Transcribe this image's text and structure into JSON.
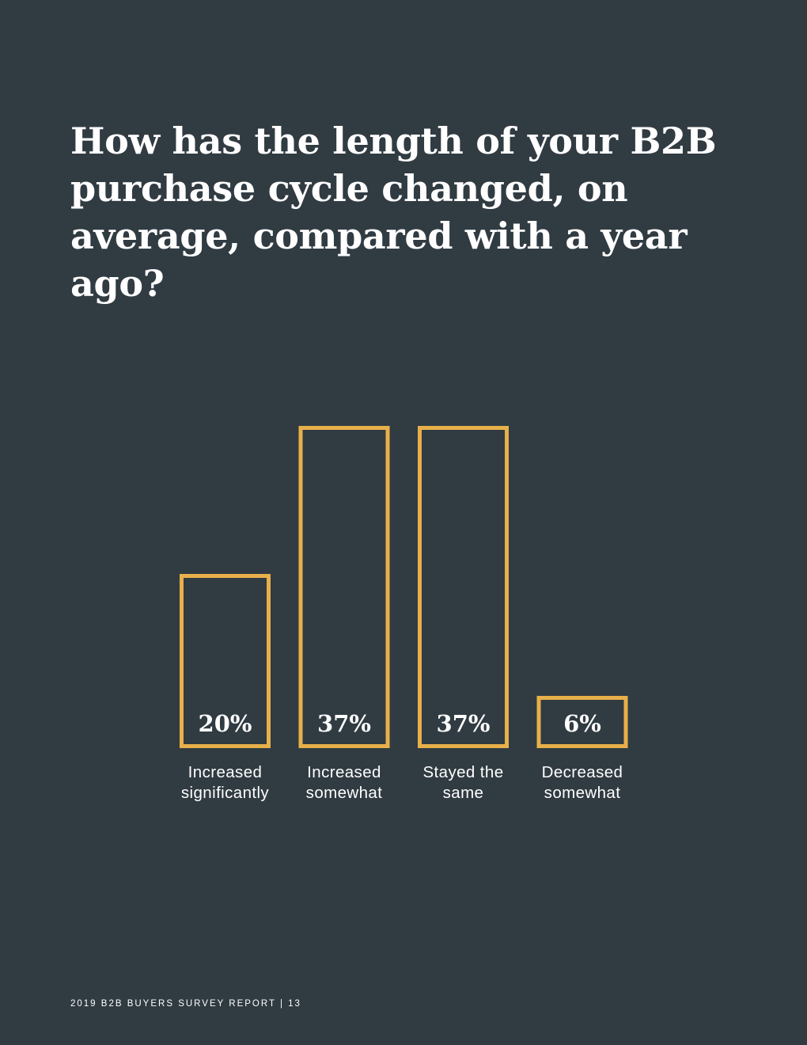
{
  "title": "How has the length of your B2B purchase cycle changed, on average, compared with a year ago?",
  "footer": "2019 B2B BUYERS SURVEY REPORT | 13",
  "colors": {
    "background": "#313b42",
    "bar_outline": "#e8b04a",
    "text": "#ffffff"
  },
  "chart_data": {
    "type": "bar",
    "categories": [
      [
        "Increased",
        "significantly"
      ],
      [
        "Increased",
        "somewhat"
      ],
      [
        "Stayed the",
        "same"
      ],
      [
        "Decreased",
        "somewhat"
      ]
    ],
    "values": [
      20,
      37,
      37,
      6
    ],
    "value_labels": [
      "20%",
      "37%",
      "37%",
      "6%"
    ],
    "title": "",
    "xlabel": "",
    "ylabel": "",
    "ylim": [
      0,
      37
    ],
    "grid": false,
    "legend": "none",
    "bar_style": "outline"
  }
}
